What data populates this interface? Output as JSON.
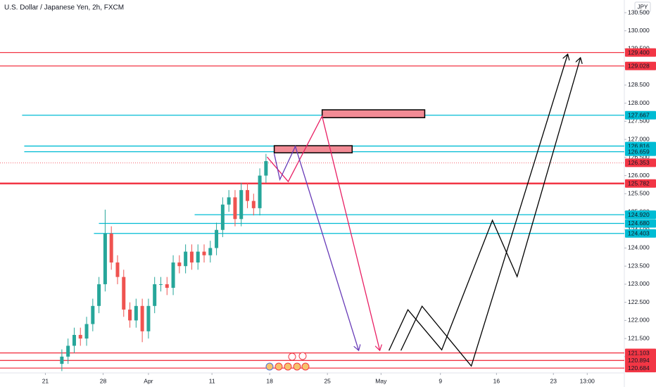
{
  "chart_data": {
    "type": "candlestick",
    "title": "U.S. Dollar / Japanese Yen, 2h, FXCM",
    "currency": "JPY",
    "xlim": [
      -5.5,
      70.2
    ],
    "ylim": [
      120.55,
      130.85
    ],
    "xticks": [
      {
        "value": 0,
        "label": "21"
      },
      {
        "value": 7,
        "label": "28"
      },
      {
        "value": 12.5,
        "label": "Apr"
      },
      {
        "value": 20.2,
        "label": "11"
      },
      {
        "value": 27.2,
        "label": "18"
      },
      {
        "value": 34.2,
        "label": "25"
      },
      {
        "value": 40.7,
        "label": "May"
      },
      {
        "value": 47.9,
        "label": "9"
      },
      {
        "value": 54.7,
        "label": "16"
      },
      {
        "value": 61.6,
        "label": "23"
      },
      {
        "value": 65.7,
        "label": "13:00"
      }
    ],
    "yticks": [
      {
        "value": 121.0,
        "label": "121.000"
      },
      {
        "value": 121.5,
        "label": "121.500"
      },
      {
        "value": 122.0,
        "label": "122.000"
      },
      {
        "value": 122.5,
        "label": "122.500"
      },
      {
        "value": 123.0,
        "label": "123.000"
      },
      {
        "value": 123.5,
        "label": "123.500"
      },
      {
        "value": 124.0,
        "label": "124.000"
      },
      {
        "value": 124.5,
        "label": "124.500"
      },
      {
        "value": 125.0,
        "label": "125.000"
      },
      {
        "value": 125.5,
        "label": "125.500"
      },
      {
        "value": 126.0,
        "label": "126.000"
      },
      {
        "value": 126.5,
        "label": "126.500"
      },
      {
        "value": 127.0,
        "label": "127.000"
      },
      {
        "value": 127.5,
        "label": "127.500"
      },
      {
        "value": 128.0,
        "label": "128.000"
      },
      {
        "value": 128.5,
        "label": "128.500"
      },
      {
        "value": 129.0,
        "label": "129.000"
      },
      {
        "value": 129.5,
        "label": "129.500"
      },
      {
        "value": 130.0,
        "label": "130.000"
      },
      {
        "value": 130.5,
        "label": "130.500"
      }
    ],
    "up_color": "#26a69a",
    "down_color": "#ef5350",
    "x": [
      2.0,
      2.75,
      3.5,
      4.25,
      5.0,
      5.75,
      6.5,
      7.25,
      8.0,
      8.75,
      9.5,
      10.25,
      11.0,
      11.75,
      12.5,
      13.25,
      14.0,
      14.75,
      15.5,
      16.25,
      17.0,
      17.75,
      18.5,
      19.25,
      20.0,
      20.75,
      21.5,
      22.25,
      23.0,
      23.75,
      24.5,
      25.25,
      26.0,
      26.75
    ],
    "open": [
      120.8,
      121.0,
      121.3,
      121.6,
      121.5,
      121.9,
      122.4,
      123.0,
      124.4,
      123.6,
      123.2,
      122.3,
      122.0,
      122.4,
      121.7,
      122.4,
      123.0,
      123.0,
      122.9,
      123.6,
      123.5,
      123.9,
      123.6,
      123.9,
      123.8,
      124.0,
      124.5,
      125.2,
      125.4,
      124.8,
      125.6,
      125.3,
      125.1,
      126.0
    ],
    "high": [
      121.2,
      121.5,
      121.8,
      121.8,
      122.1,
      122.6,
      123.2,
      125.06,
      124.6,
      123.8,
      123.4,
      122.5,
      122.6,
      122.6,
      122.6,
      123.2,
      123.2,
      123.2,
      123.8,
      123.8,
      124.1,
      124.1,
      124.1,
      124.1,
      124.2,
      124.7,
      125.4,
      125.6,
      125.6,
      125.8,
      125.8,
      125.5,
      126.2,
      126.6
    ],
    "low": [
      120.6,
      120.8,
      121.1,
      121.3,
      121.3,
      121.7,
      122.2,
      122.8,
      123.4,
      123.0,
      122.1,
      121.8,
      121.8,
      121.4,
      121.5,
      122.2,
      122.8,
      122.7,
      122.7,
      123.3,
      123.3,
      123.4,
      123.4,
      123.6,
      123.6,
      123.8,
      124.3,
      125.0,
      124.6,
      124.6,
      125.1,
      124.9,
      124.9,
      125.8
    ],
    "close": [
      121.0,
      121.3,
      121.6,
      121.5,
      121.9,
      122.4,
      123.0,
      124.4,
      123.6,
      123.2,
      122.3,
      122.0,
      122.4,
      121.7,
      122.4,
      123.0,
      123.0,
      122.9,
      123.6,
      123.5,
      123.9,
      123.6,
      123.9,
      123.8,
      124.0,
      124.5,
      125.2,
      125.4,
      124.8,
      125.6,
      125.3,
      125.1,
      126.0,
      126.4
    ],
    "levels": [
      {
        "value": 129.4,
        "label": "129.400",
        "color": "#f23645"
      },
      {
        "value": 129.028,
        "label": "129.028",
        "color": "#f23645"
      },
      {
        "value": 127.667,
        "label": "127.667",
        "color": "#00bcd4",
        "from": -2.82
      },
      {
        "value": 126.816,
        "label": "126.816",
        "color": "#00bcd4",
        "from": -2.56
      },
      {
        "value": 126.659,
        "label": "126.659",
        "color": "#00bcd4",
        "from": -2.56
      },
      {
        "value": 126.353,
        "label": "126.353",
        "color": "#f23645",
        "dotted": true
      },
      {
        "value": 125.782,
        "label": "125.782",
        "color": "#f23645",
        "thick": true
      },
      {
        "value": 124.92,
        "label": "124.920",
        "color": "#00bcd4",
        "from": 18.1
      },
      {
        "value": 124.68,
        "label": "124.680",
        "color": "#00bcd4",
        "from": 6.49
      },
      {
        "value": 124.403,
        "label": "124.403",
        "color": "#00bcd4",
        "from": 5.89
      },
      {
        "value": 121.103,
        "label": "121.103",
        "color": "#f23645"
      },
      {
        "value": 120.894,
        "label": "120.894",
        "color": "#f23645"
      },
      {
        "value": 120.684,
        "label": "120.684",
        "color": "#f23645"
      }
    ],
    "zones": [
      {
        "x": [
          27.75,
          37.2
        ],
        "y": [
          126.63,
          126.826
        ]
      },
      {
        "x": [
          33.56,
          46.0
        ],
        "y": [
          127.6,
          127.817
        ]
      }
    ],
    "zone_color": "#f28b95",
    "paths": [
      {
        "color": "#e91e63",
        "x": [
          26.89,
          29.45,
          33.55,
          40.55
        ],
        "y": [
          126.515,
          125.834,
          127.642,
          121.169
        ]
      },
      {
        "color": "#673ab7",
        "x": [
          27.74,
          28.43,
          30.31,
          37.99
        ],
        "y": [
          126.612,
          125.893,
          126.806,
          121.169
        ]
      },
      {
        "color": "#000000",
        "x": [
          41.66,
          43.96,
          48.06,
          54.21,
          57.2,
          64.88
        ],
        "y": [
          121.169,
          122.296,
          121.188,
          124.765,
          123.21,
          129.256
        ]
      },
      {
        "color": "#000000",
        "x": [
          43.11,
          45.67,
          51.65,
          63.34
        ],
        "y": [
          121.169,
          122.393,
          120.741,
          129.353
        ]
      }
    ]
  }
}
